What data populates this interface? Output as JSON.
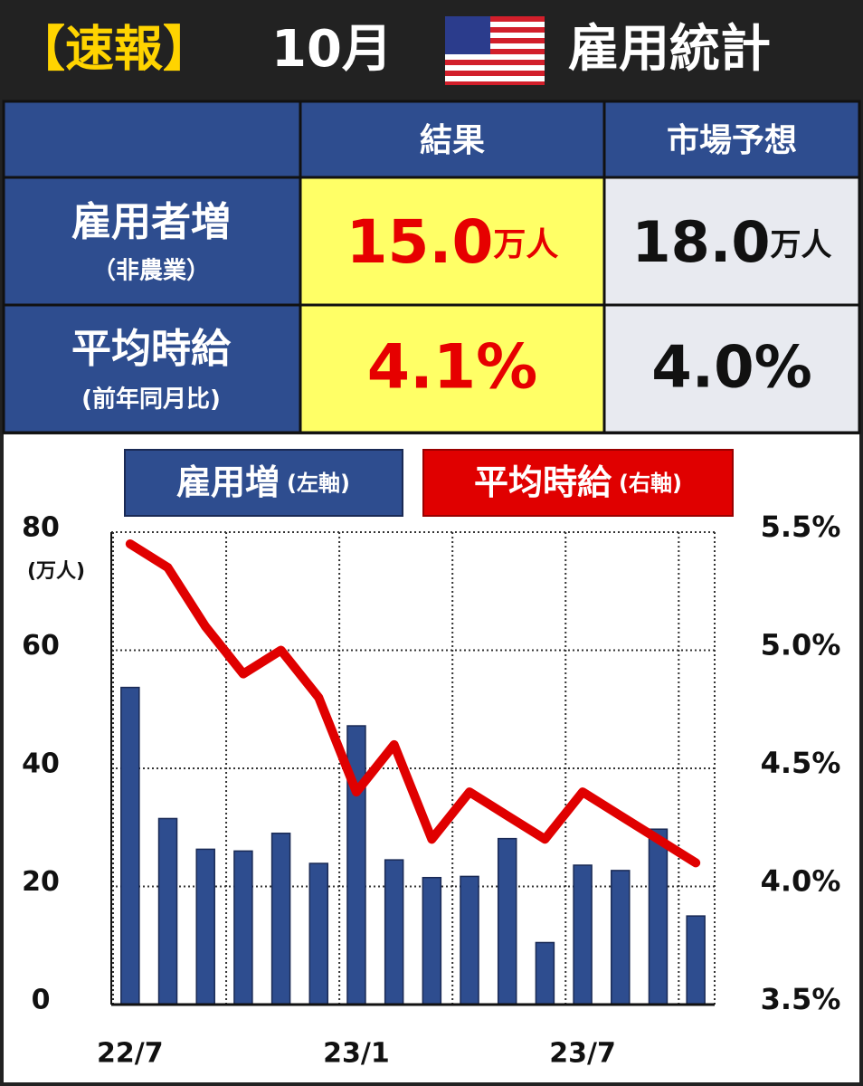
{
  "header": {
    "tag": "【速報】",
    "month": "10月",
    "title": "雇用統計"
  },
  "table": {
    "columns": [
      "結果",
      "市場予想"
    ],
    "rows": [
      {
        "label": "雇用者増",
        "sublabel": "（非農業）",
        "result": "15.0",
        "result_unit": "万人",
        "forecast": "18.0",
        "forecast_unit": "万人"
      },
      {
        "label": "平均時給",
        "sublabel": "(前年同月比)",
        "result": "4.1%",
        "forecast": "4.0%"
      }
    ]
  },
  "chart_data": {
    "type": "combo",
    "categories": [
      "22/7",
      null,
      null,
      null,
      null,
      null,
      "23/1",
      null,
      null,
      null,
      null,
      null,
      "23/7",
      null,
      null,
      null
    ],
    "y_unit": "(万人)",
    "series": [
      {
        "name": "雇用増",
        "axis_label": "(左軸)",
        "type": "bar",
        "color": "#2e4d8f",
        "values": [
          53.7,
          31.5,
          26.3,
          26,
          29,
          23.9,
          47.2,
          24.5,
          21.5,
          21.7,
          28.1,
          10.5,
          23.6,
          22.7,
          29.7,
          15.0
        ]
      },
      {
        "name": "平均時給",
        "axis_label": "(右軸)",
        "type": "line",
        "color": "#e00000",
        "axis": "y2",
        "values": [
          5.45,
          5.35,
          5.1,
          4.9,
          5.0,
          4.8,
          4.4,
          4.6,
          4.2,
          4.4,
          4.3,
          4.2,
          4.4,
          4.3,
          4.2,
          4.1
        ]
      }
    ],
    "ylim": [
      0,
      80
    ],
    "yticks": [
      0,
      20,
      40,
      60,
      80
    ],
    "y2lim": [
      3.5,
      5.5
    ],
    "y2ticks": [
      {
        "value": 3.5,
        "label": "3.5%"
      },
      {
        "value": 4.0,
        "label": "4.0%"
      },
      {
        "value": 4.5,
        "label": "4.5%"
      },
      {
        "value": 5.0,
        "label": "5.0%"
      },
      {
        "value": 5.5,
        "label": "5.5%"
      }
    ],
    "grid": true
  }
}
